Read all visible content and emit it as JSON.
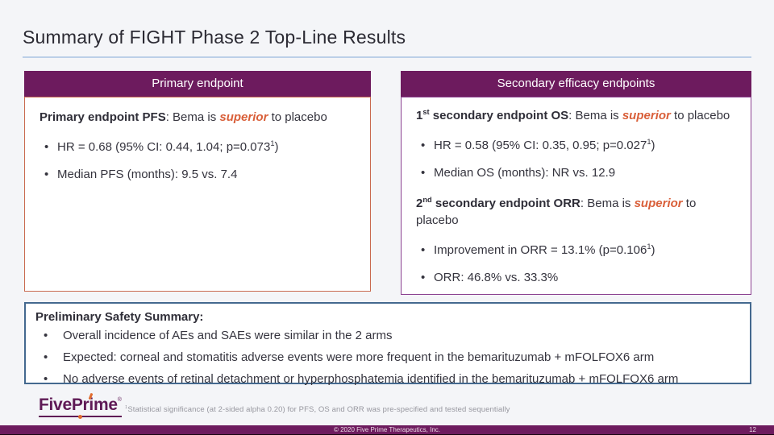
{
  "slide": {
    "title": "Summary of FIGHT Phase 2 Top-Line Results",
    "page_number": "12",
    "copyright": "© 2020 Five Prime Therapeutics, Inc.",
    "footnote_sup": "1",
    "footnote": "Statistical significance (at 2-sided alpha 0.20) for PFS, OS and ORR was pre-specified and tested sequentially",
    "logo": {
      "text_pre": "FivePr",
      "text_i": "i",
      "text_post": "me",
      "registered": "®"
    }
  },
  "colors": {
    "header_purple": "#6d1b5e",
    "accent_orange": "#d95f39",
    "primary_panel_border": "#c96a50",
    "secondary_panel_border": "#8b4190",
    "safety_border": "#44698f",
    "title_rule_blue": "#bccfe8"
  },
  "primary_panel": {
    "header": "Primary endpoint",
    "lead": {
      "bold": "Primary endpoint PFS",
      "mid": ": Bema is ",
      "highlight": "superior",
      "end": " to placebo"
    },
    "bullets": [
      {
        "pre": "HR = 0.68 (95% CI: 0.44, 1.04; p=0.073",
        "sup": "1",
        "post": ")"
      },
      {
        "pre": "Median PFS (months): 9.5 vs. 7.4",
        "sup": "",
        "post": ""
      }
    ]
  },
  "secondary_panel": {
    "header": "Secondary efficacy endpoints",
    "sections": [
      {
        "lead": {
          "num": "1",
          "ordinal": "st",
          "bold_rest": " secondary endpoint OS",
          "mid": ": Bema is ",
          "highlight": "superior",
          "end": " to placebo"
        },
        "bullets": [
          {
            "pre": "HR = 0.58 (95% CI: 0.35, 0.95; p=0.027",
            "sup": "1",
            "post": ")"
          },
          {
            "pre": "Median OS (months): NR vs. 12.9",
            "sup": "",
            "post": ""
          }
        ]
      },
      {
        "lead": {
          "num": "2",
          "ordinal": "nd",
          "bold_rest": " secondary endpoint ORR",
          "mid": ": Bema is ",
          "highlight": "superior",
          "end": " to placebo"
        },
        "bullets": [
          {
            "pre": "Improvement in ORR = 13.1% (p=0.106",
            "sup": "1",
            "post": ")"
          },
          {
            "pre": "ORR: 46.8% vs. 33.3%",
            "sup": "",
            "post": ""
          }
        ]
      }
    ]
  },
  "safety": {
    "title": "Preliminary Safety Summary:",
    "bullets": [
      "Overall incidence of AEs and SAEs were similar in the 2 arms",
      "Expected: corneal and stomatitis adverse events were more frequent in the bemarituzumab + mFOLFOX6 arm",
      "No adverse events of retinal detachment or hyperphosphatemia identified in the bemarituzumab + mFOLFOX6 arm"
    ]
  }
}
